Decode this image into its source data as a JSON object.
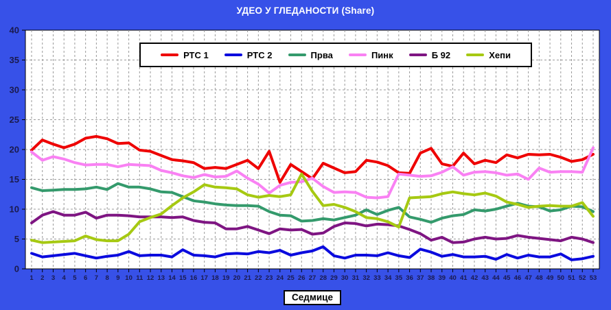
{
  "chart_data": {
    "type": "line",
    "title": "УДЕО У ГЛЕДАНОСТИ (Share)",
    "xlabel": "Седмице",
    "ylabel": "",
    "ylim": [
      0,
      40
    ],
    "ytick_step": 5,
    "grid": "dashed",
    "legend_position": "top-center",
    "x": [
      1,
      2,
      3,
      4,
      5,
      6,
      7,
      8,
      9,
      10,
      11,
      12,
      13,
      14,
      15,
      16,
      17,
      18,
      19,
      20,
      21,
      22,
      23,
      24,
      25,
      26,
      27,
      28,
      29,
      30,
      31,
      32,
      33,
      34,
      35,
      36,
      37,
      38,
      39,
      40,
      41,
      42,
      43,
      44,
      45,
      46,
      47,
      48,
      49,
      50,
      51,
      52,
      53
    ],
    "series": [
      {
        "id": "rts1",
        "name": "РТС 1",
        "color": "#EE0000",
        "values": [
          19.9,
          21.6,
          20.9,
          20.3,
          20.9,
          21.9,
          22.2,
          21.8,
          21.0,
          21.1,
          19.9,
          19.7,
          19.0,
          18.3,
          18.1,
          17.8,
          16.8,
          17.0,
          16.8,
          17.5,
          18.2,
          16.8,
          19.7,
          14.5,
          17.5,
          16.3,
          15.1,
          17.7,
          16.9,
          16.1,
          16.3,
          18.2,
          17.9,
          17.3,
          16.1,
          16.0,
          19.4,
          20.2,
          17.6,
          17.2,
          19.4,
          17.6,
          18.2,
          17.8,
          19.1,
          18.6,
          19.2,
          19.1,
          19.2,
          18.7,
          18.0,
          18.3,
          19.2
        ]
      },
      {
        "id": "rts2",
        "name": "РТС 2",
        "color": "#0B0BDE",
        "values": [
          2.6,
          2.0,
          2.2,
          2.4,
          2.6,
          2.2,
          1.8,
          2.1,
          2.3,
          2.9,
          2.2,
          2.3,
          2.3,
          2.0,
          3.2,
          2.3,
          2.2,
          2.0,
          2.5,
          2.6,
          2.5,
          2.9,
          2.7,
          3.1,
          2.3,
          2.7,
          3.0,
          3.7,
          2.2,
          1.8,
          2.3,
          2.3,
          2.2,
          2.7,
          2.2,
          1.9,
          3.3,
          2.8,
          2.1,
          2.4,
          2.0,
          2.0,
          2.1,
          1.6,
          2.4,
          1.8,
          2.3,
          2.0,
          2.0,
          2.5,
          1.5,
          1.7,
          2.1
        ]
      },
      {
        "id": "prva",
        "name": "Прва",
        "color": "#349A6C",
        "values": [
          13.6,
          13.1,
          13.2,
          13.3,
          13.3,
          13.4,
          13.7,
          13.3,
          14.3,
          13.7,
          13.7,
          13.4,
          12.9,
          12.8,
          12.1,
          11.4,
          11.2,
          10.9,
          10.7,
          10.6,
          10.6,
          10.5,
          9.6,
          9.0,
          8.9,
          8.0,
          8.1,
          8.4,
          8.2,
          8.6,
          9.0,
          9.9,
          9.1,
          9.8,
          10.3,
          8.7,
          8.3,
          7.8,
          8.5,
          8.9,
          9.1,
          9.9,
          9.7,
          10.0,
          10.5,
          11.0,
          10.5,
          10.4,
          9.7,
          9.9,
          10.5,
          10.4,
          9.6
        ]
      },
      {
        "id": "pink",
        "name": "Пинк",
        "color": "#F981F3",
        "values": [
          19.6,
          18.2,
          18.8,
          18.4,
          17.8,
          17.4,
          17.5,
          17.5,
          17.1,
          17.5,
          17.4,
          17.3,
          16.5,
          16.1,
          15.6,
          15.3,
          15.8,
          15.4,
          15.5,
          16.4,
          15.2,
          14.2,
          12.7,
          14.0,
          14.5,
          14.6,
          15.2,
          13.8,
          12.8,
          12.9,
          12.8,
          12.0,
          11.9,
          12.1,
          15.9,
          15.7,
          15.5,
          15.6,
          16.2,
          17.1,
          15.7,
          16.2,
          16.3,
          16.1,
          15.7,
          15.9,
          15.0,
          16.9,
          16.2,
          16.3,
          16.3,
          16.2,
          20.3
        ]
      },
      {
        "id": "b92",
        "name": "Б 92",
        "color": "#7E1582",
        "values": [
          7.7,
          9.0,
          9.6,
          9.0,
          9.0,
          9.5,
          8.5,
          9.0,
          9.0,
          8.9,
          8.7,
          8.7,
          8.7,
          8.6,
          8.7,
          8.1,
          7.8,
          7.7,
          6.7,
          6.7,
          7.1,
          6.5,
          5.9,
          6.7,
          6.5,
          6.6,
          5.8,
          6.0,
          7.1,
          7.7,
          7.6,
          7.2,
          7.5,
          7.4,
          7.2,
          6.6,
          5.9,
          4.8,
          5.3,
          4.4,
          4.5,
          5.0,
          5.3,
          5.0,
          5.1,
          5.6,
          5.3,
          5.1,
          4.9,
          4.7,
          5.3,
          5.0,
          4.4
        ]
      },
      {
        "id": "hepi",
        "name": "Хепи",
        "color": "#A6C912",
        "values": [
          4.8,
          4.4,
          4.5,
          4.6,
          4.7,
          5.5,
          4.9,
          4.7,
          4.7,
          5.8,
          7.9,
          8.6,
          9.2,
          10.6,
          11.9,
          12.9,
          14.1,
          13.7,
          13.6,
          13.4,
          12.4,
          12.0,
          12.3,
          12.1,
          12.4,
          15.9,
          13.0,
          10.6,
          10.8,
          10.3,
          9.6,
          8.6,
          8.4,
          7.9,
          7.0,
          11.9,
          12.0,
          12.1,
          12.6,
          12.9,
          12.6,
          12.4,
          12.7,
          12.2,
          11.2,
          10.8,
          10.3,
          10.5,
          10.6,
          10.5,
          10.5,
          11.1,
          8.8
        ]
      }
    ]
  },
  "style": {
    "background": "#3751E8",
    "plot_background": "#FFFFFF",
    "gridline_color": "#999999",
    "axis_color": "#000000",
    "tick_label_color": "#1A1A4E",
    "title_color": "#FFFFFF"
  }
}
